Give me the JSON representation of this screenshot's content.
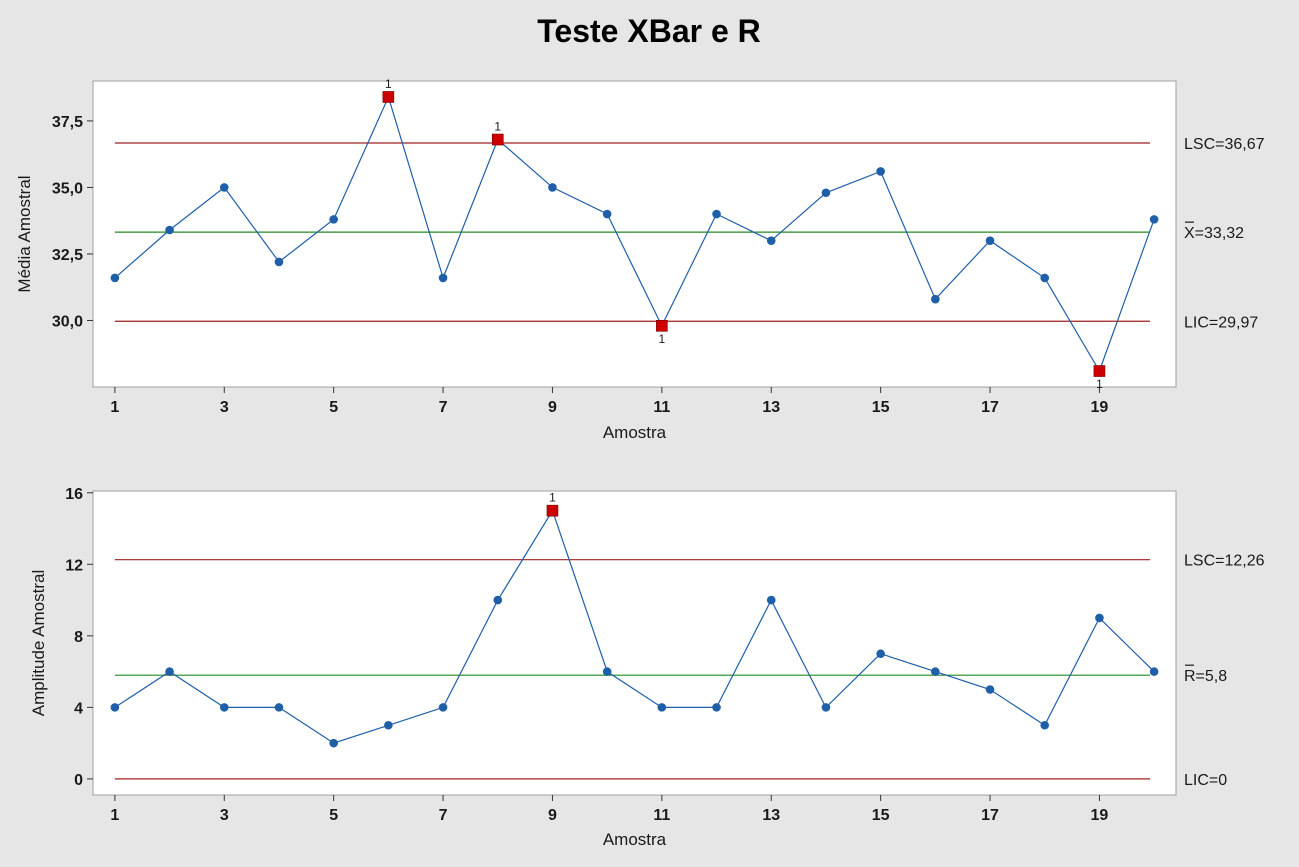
{
  "chart_data": {
    "type": "line",
    "title": "Teste XBar e R",
    "colors": {
      "series": "#1f5fa8",
      "out_of_control": "#cc0000",
      "control_limit": "#a02020",
      "center_line": "#228b22",
      "plot_bg": "#ffffff",
      "figure_bg": "#e6e6e6"
    },
    "panels": [
      {
        "id": "xbar",
        "ylabel": "Média Amostral",
        "xlabel": "Amostra",
        "x": [
          1,
          2,
          3,
          4,
          5,
          6,
          7,
          8,
          9,
          10,
          11,
          12,
          13,
          14,
          15,
          16,
          17,
          18,
          19,
          20
        ],
        "values": [
          31.6,
          33.4,
          35.0,
          32.2,
          33.8,
          38.4,
          31.6,
          36.8,
          35.0,
          34.0,
          29.8,
          34.0,
          33.0,
          34.8,
          35.6,
          30.8,
          33.0,
          31.6,
          28.1,
          33.8
        ],
        "out_of_control": [
          6,
          8,
          11,
          19
        ],
        "flag_text": "1",
        "xticks": [
          1,
          3,
          5,
          7,
          9,
          11,
          13,
          15,
          17,
          19
        ],
        "xtick_labels": [
          "1",
          "3",
          "5",
          "7",
          "9",
          "11",
          "13",
          "15",
          "17",
          "19"
        ],
        "yticks": [
          30.0,
          32.5,
          35.0,
          37.5
        ],
        "ytick_labels": [
          "30,0",
          "32,5",
          "35,0",
          "37,5"
        ],
        "ylim": [
          27.5,
          39.0
        ],
        "xlim": [
          0.6,
          20.4
        ],
        "limits": [
          {
            "kind": "ucl",
            "value": 36.67,
            "prefix": "LSC=",
            "value_text": "36,67"
          },
          {
            "kind": "center",
            "value": 33.32,
            "prefix": "X=",
            "value_text": "33,32"
          },
          {
            "kind": "lcl",
            "value": 29.97,
            "prefix": "LIC=",
            "value_text": "29,97"
          }
        ]
      },
      {
        "id": "r",
        "ylabel": "Amplitude Amostral",
        "xlabel": "Amostra",
        "x": [
          1,
          2,
          3,
          4,
          5,
          6,
          7,
          8,
          9,
          10,
          11,
          12,
          13,
          14,
          15,
          16,
          17,
          18,
          19,
          20
        ],
        "values": [
          4,
          6,
          4,
          4,
          2,
          3,
          4,
          10,
          15,
          6,
          4,
          4,
          10,
          4,
          7,
          6,
          5,
          3,
          9,
          6
        ],
        "out_of_control": [
          9
        ],
        "flag_text": "1",
        "xticks": [
          1,
          3,
          5,
          7,
          9,
          11,
          13,
          15,
          17,
          19
        ],
        "xtick_labels": [
          "1",
          "3",
          "5",
          "7",
          "9",
          "11",
          "13",
          "15",
          "17",
          "19"
        ],
        "yticks": [
          0,
          4,
          8,
          12,
          16
        ],
        "ytick_labels": [
          "0",
          "4",
          "8",
          "12",
          "16"
        ],
        "ylim": [
          -0.9,
          16.1
        ],
        "xlim": [
          0.6,
          20.4
        ],
        "limits": [
          {
            "kind": "ucl",
            "value": 12.26,
            "prefix": "LSC=",
            "value_text": "12,26"
          },
          {
            "kind": "center",
            "value": 5.8,
            "prefix": "R=",
            "value_text": "5,8"
          },
          {
            "kind": "lcl",
            "value": 0,
            "prefix": "LIC=",
            "value_text": "0"
          }
        ]
      }
    ]
  }
}
